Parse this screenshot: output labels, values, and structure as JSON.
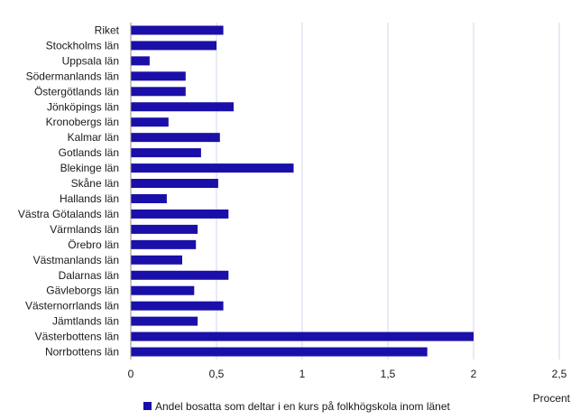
{
  "chart_data": {
    "type": "bar",
    "orientation": "horizontal",
    "categories": [
      "Riket",
      "Stockholms län",
      "Uppsala län",
      "Södermanlands län",
      "Östergötlands län",
      "Jönköpings län",
      "Kronobergs län",
      "Kalmar län",
      "Gotlands län",
      "Blekinge län",
      "Skåne län",
      "Hallands län",
      "Västra Götalands län",
      "Värmlands län",
      "Örebro län",
      "Västmanlands län",
      "Dalarnas län",
      "Gävleborgs län",
      "Västernorrlands län",
      "Jämtlands län",
      "Västerbottens län",
      "Norrbottens län"
    ],
    "series": [
      {
        "name": "Andel bosatta som deltar i en kurs på folkhögskola inom länet",
        "values": [
          0.54,
          0.5,
          0.11,
          0.32,
          0.32,
          0.6,
          0.22,
          0.52,
          0.41,
          0.95,
          0.51,
          0.21,
          0.57,
          0.39,
          0.38,
          0.3,
          0.57,
          0.37,
          0.54,
          0.39,
          2.0,
          1.73
        ]
      }
    ],
    "xlim": [
      0,
      2.5
    ],
    "xticks": [
      "0",
      "0,5",
      "1",
      "1,5",
      "2",
      "2,5"
    ],
    "xunit": "Procent",
    "grid": "vertical",
    "legend_position": "bottom",
    "colors": {
      "bar": "#1a0fa8",
      "grid": "#d4d4ec",
      "axis": "#8c8c8c",
      "text": "#1a1a1a"
    }
  }
}
